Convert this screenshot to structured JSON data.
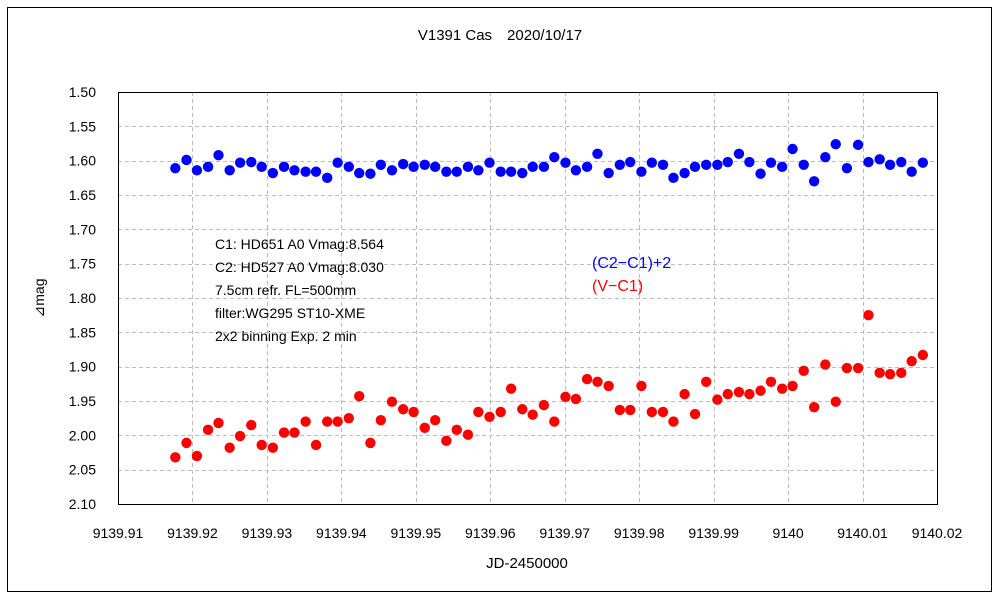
{
  "chart_data": {
    "type": "scatter",
    "title": "V1391 Cas　2020/10/17",
    "xlabel": "JD-2450000",
    "ylabel": "⊿mag",
    "xlim": [
      9139.91,
      9140.02
    ],
    "ylim": [
      2.1,
      1.5
    ],
    "y_inverted": true,
    "grid": true,
    "x_ticks": [
      "9139.91",
      "9139.92",
      "9139.93",
      "9139.94",
      "9139.95",
      "9139.96",
      "9139.97",
      "9139.98",
      "9139.99",
      "9140",
      "9140.01",
      "9140.02"
    ],
    "x_tick_values": [
      9139.91,
      9139.92,
      9139.93,
      9139.94,
      9139.95,
      9139.96,
      9139.97,
      9139.98,
      9139.99,
      9140.0,
      9140.01,
      9140.02
    ],
    "y_ticks": [
      "1.50",
      "1.55",
      "1.60",
      "1.65",
      "1.70",
      "1.75",
      "1.80",
      "1.85",
      "1.90",
      "1.95",
      "2.00",
      "2.05",
      "2.10"
    ],
    "y_tick_values": [
      1.5,
      1.55,
      1.6,
      1.65,
      1.7,
      1.75,
      1.8,
      1.85,
      1.9,
      1.95,
      2.0,
      2.05,
      2.1
    ],
    "x": [
      9139.9177,
      9139.9192,
      9139.9206,
      9139.9221,
      9139.9235,
      9139.925,
      9139.9264,
      9139.9279,
      9139.9293,
      9139.9308,
      9139.9323,
      9139.9337,
      9139.9352,
      9139.9366,
      9139.9381,
      9139.9395,
      9139.941,
      9139.9424,
      9139.9439,
      9139.9453,
      9139.9468,
      9139.9483,
      9139.9497,
      9139.9512,
      9139.9526,
      9139.9541,
      9139.9555,
      9139.957,
      9139.9584,
      9139.9599,
      9139.9614,
      9139.9628,
      9139.9643,
      9139.9657,
      9139.9672,
      9139.9686,
      9139.9701,
      9139.9715,
      9139.973,
      9139.9744,
      9139.9759,
      9139.9774,
      9139.9788,
      9139.9803,
      9139.9817,
      9139.9832,
      9139.9846,
      9139.9861,
      9139.9875,
      9139.989,
      9139.9905,
      9139.9919,
      9139.9934,
      9139.9948,
      9139.9963,
      9139.9977,
      9139.9992,
      9140.0006,
      9140.0021,
      9140.0035,
      9140.005,
      9140.0064,
      9140.0079,
      9140.0094,
      9140.0108,
      9140.0123,
      9140.0137,
      9140.0152,
      9140.0166,
      9140.0181
    ],
    "series": [
      {
        "name": "(C2−C1)+2",
        "color": "#0000ff",
        "values": [
          1.611,
          1.599,
          1.614,
          1.609,
          1.592,
          1.614,
          1.603,
          1.602,
          1.609,
          1.618,
          1.609,
          1.614,
          1.616,
          1.616,
          1.625,
          1.603,
          1.609,
          1.618,
          1.619,
          1.606,
          1.614,
          1.605,
          1.609,
          1.606,
          1.609,
          1.616,
          1.616,
          1.609,
          1.614,
          1.603,
          1.616,
          1.616,
          1.618,
          1.609,
          1.609,
          1.595,
          1.603,
          1.614,
          1.609,
          1.59,
          1.618,
          1.606,
          1.602,
          1.616,
          1.603,
          1.606,
          1.625,
          1.618,
          1.609,
          1.606,
          1.606,
          1.602,
          1.59,
          1.602,
          1.619,
          1.603,
          1.609,
          1.583,
          1.606,
          1.63,
          1.595,
          1.576,
          1.611,
          1.577,
          1.602,
          1.598,
          1.606,
          1.602,
          1.616,
          1.603
        ]
      },
      {
        "name": "(V−C1)",
        "color": "#ff0000",
        "values": [
          2.032,
          2.011,
          2.03,
          1.992,
          1.982,
          2.018,
          2.001,
          1.985,
          2.014,
          2.018,
          1.996,
          1.996,
          1.98,
          2.014,
          1.98,
          1.98,
          1.975,
          1.943,
          2.011,
          1.978,
          1.951,
          1.962,
          1.966,
          1.989,
          1.978,
          2.008,
          1.992,
          1.999,
          1.966,
          1.973,
          1.966,
          1.932,
          1.962,
          1.97,
          1.956,
          1.98,
          1.944,
          1.947,
          1.918,
          1.922,
          1.928,
          1.963,
          1.963,
          1.928,
          1.966,
          1.966,
          1.98,
          1.94,
          1.969,
          1.922,
          1.948,
          1.94,
          1.937,
          1.94,
          1.935,
          1.922,
          1.932,
          1.928,
          1.906,
          1.959,
          1.897,
          1.951,
          1.902,
          1.902,
          1.825,
          1.909,
          1.911,
          1.909,
          1.892,
          1.883
        ]
      }
    ],
    "annotations": [
      "C1: HD651 A0  Vmag:8.564",
      "C2: HD527 A0  Vmag:8.030",
      "7.5cm refr. FL=500mm",
      "filter:WG295  ST10-XME",
      "2x2 binning  Exp. 2 min"
    ],
    "legend": [
      "(C2−C1)+2",
      "(V−C1)"
    ],
    "legend_placement": "center-right"
  }
}
